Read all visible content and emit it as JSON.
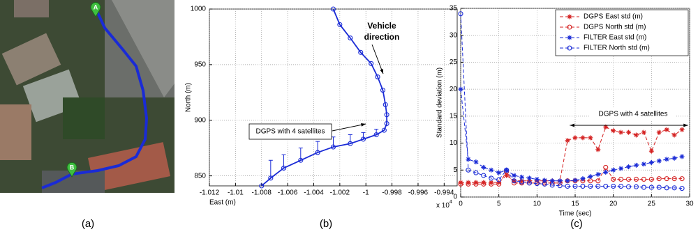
{
  "panels": [
    "(a)",
    "(b)",
    "(c)"
  ],
  "map": {
    "markers": [
      "A",
      "B"
    ]
  },
  "chart_data": [
    {
      "type": "line",
      "xlabel": "East (m)",
      "ylabel": "North (m)",
      "x_scale": {
        "label": "x 10",
        "exponent": 4
      },
      "xlim": [
        -1.012,
        -0.993
      ],
      "ylim": [
        841,
        1000
      ],
      "xticks": [
        -1.012,
        -1.01,
        -1.008,
        -1.006,
        -1.004,
        -1.002,
        -1,
        -0.998,
        -0.996,
        -0.994
      ],
      "yticks": [
        850,
        900,
        950,
        1000
      ],
      "grid": true,
      "annotations": [
        "Vehicle",
        "direction",
        "DGPS with 4 satellites"
      ],
      "x": [
        -1.0025,
        -1.002,
        -1.0012,
        -1.0004,
        -0.9996,
        -0.9991,
        -0.9987,
        -0.9985,
        -0.9984,
        -0.9984,
        -0.9986,
        -0.9992,
        -1.0002,
        -1.0012,
        -1.0025,
        -1.0037,
        -1.005,
        -1.0063,
        -1.0073,
        -1.008
      ],
      "series": [
        {
          "color": "#1a2bd6",
          "values": [
            1000,
            986,
            974,
            961,
            951,
            939,
            927,
            914,
            905,
            897,
            891,
            887,
            883,
            879,
            876,
            871,
            864,
            857,
            848,
            841
          ],
          "errors": [
            null,
            null,
            null,
            null,
            null,
            null,
            null,
            null,
            null,
            null,
            null,
            5,
            6,
            8,
            9,
            10,
            11,
            12,
            16,
            null
          ]
        }
      ]
    },
    {
      "type": "line",
      "xlabel": "Time (sec)",
      "ylabel": "Standard deviation (m)",
      "xlim": [
        0,
        30
      ],
      "ylim": [
        0,
        35
      ],
      "xticks": [
        0,
        5,
        10,
        15,
        20,
        25,
        30
      ],
      "yticks": [
        0,
        5,
        10,
        15,
        20,
        25,
        30,
        35
      ],
      "grid": true,
      "line_style": "dashed",
      "legend": "top-right",
      "annotations": [
        "DGPS with 4 satellites"
      ],
      "x": [
        0,
        1,
        2,
        3,
        4,
        5,
        6,
        7,
        8,
        9,
        10,
        11,
        12,
        13,
        14,
        15,
        16,
        17,
        18,
        19,
        20,
        21,
        22,
        23,
        24,
        25,
        26,
        27,
        28,
        29
      ],
      "series": [
        {
          "name": "DGPS East std (m)",
          "color": "#d42020",
          "marker": "star",
          "values": [
            2.7,
            2.7,
            2.7,
            2.7,
            2.7,
            2.7,
            4,
            3,
            3,
            3,
            3,
            3,
            3,
            3,
            10.5,
            11,
            11,
            11,
            8.8,
            13,
            12.3,
            12,
            12,
            11.5,
            12,
            8.5,
            12,
            12.5,
            11.5,
            12.5
          ]
        },
        {
          "name": "DGPS North std (m)",
          "color": "#d42020",
          "marker": "circle",
          "values": [
            2.4,
            2.4,
            2.4,
            2.4,
            2.4,
            2.4,
            4.7,
            2.6,
            2.6,
            2.6,
            2.6,
            2.6,
            2.6,
            2.6,
            3,
            3,
            3,
            3,
            3,
            5.5,
            3.3,
            3.3,
            3.3,
            3.3,
            3.3,
            3.3,
            3.4,
            3.4,
            3.4,
            3.4
          ]
        },
        {
          "name": "FILTER East std (m)",
          "color": "#1a2bd6",
          "marker": "star",
          "values": [
            20,
            7,
            6.5,
            5.5,
            5,
            4.5,
            5,
            4,
            3.7,
            3.5,
            3.3,
            3.1,
            3,
            3,
            3,
            3.1,
            3.4,
            3.8,
            4.2,
            4.6,
            5,
            5.3,
            5.6,
            5.9,
            6.1,
            6.4,
            6.7,
            7,
            7.2,
            7.5
          ]
        },
        {
          "name": "FILTER North std (m)",
          "color": "#1a2bd6",
          "marker": "circle",
          "values": [
            34,
            5,
            4.5,
            4,
            3.5,
            3.2,
            5,
            3,
            2.8,
            2.6,
            2.5,
            2.4,
            2.2,
            2.1,
            2,
            2,
            2,
            2,
            2,
            2,
            2,
            2,
            1.9,
            1.9,
            1.8,
            1.8,
            1.8,
            1.7,
            1.7,
            1.6
          ]
        }
      ]
    }
  ]
}
